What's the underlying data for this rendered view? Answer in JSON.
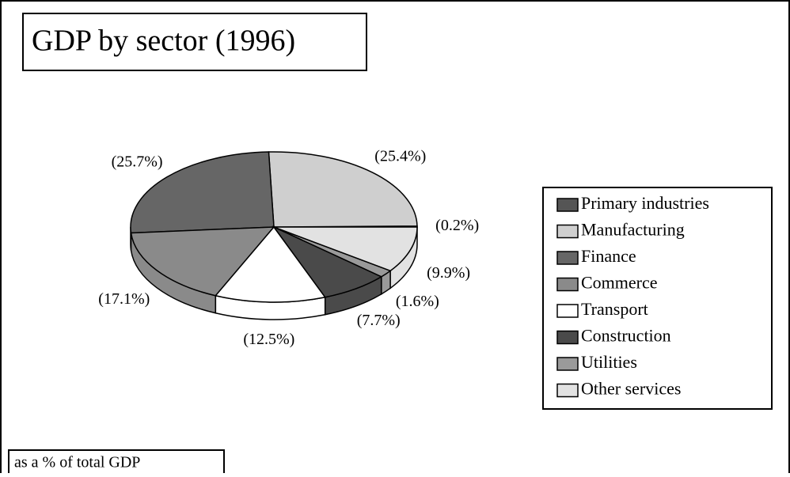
{
  "chart_data": {
    "type": "pie",
    "title": "GDP by sector (1996)",
    "note": "as a % of total GDP",
    "categories": [
      "Primary industries",
      "Manufacturing",
      "Finance",
      "Commerce",
      "Transport",
      "Construction",
      "Utilities",
      "Other services"
    ],
    "values": [
      0.2,
      25.4,
      25.7,
      17.1,
      12.5,
      7.7,
      1.6,
      9.9
    ],
    "value_labels": [
      "(0.2%)",
      "(25.4%)",
      "(25.7%)",
      "(17.1%)",
      "(12.5%)",
      "(7.7%)",
      "(1.6%)",
      "(9.9%)"
    ],
    "colors": [
      "#555555",
      "#cfcfcf",
      "#666666",
      "#8a8a8a",
      "#ffffff",
      "#4a4a4a",
      "#9a9a9a",
      "#e2e2e2"
    ],
    "legend": "right"
  }
}
